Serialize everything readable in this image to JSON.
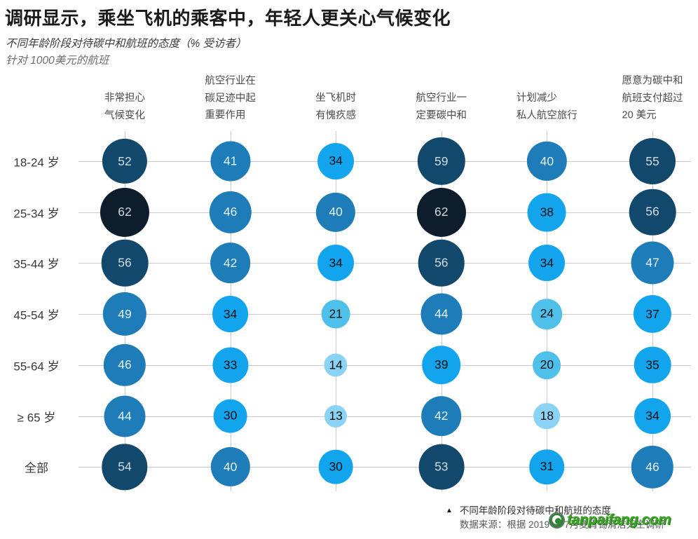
{
  "header": {
    "title": "调研显示，乘坐飞机的乘客中，年轻人更关心气候变化",
    "subtitle": "不同年龄阶段对待碳中和航班的态度（% 受访者）",
    "note": "针对 1000美元的航班"
  },
  "chart_data": {
    "type": "bubble-matrix",
    "title": "不同年龄阶段对待碳中和航班的态度",
    "unit": "% 受访者",
    "column_headers": [
      [
        "非常担心",
        "气候变化"
      ],
      [
        "航空行业在",
        "碳足迹中起",
        "重要作用"
      ],
      [
        "坐飞机时",
        "有愧疚感"
      ],
      [
        "航空行业一",
        "定要碳中和"
      ],
      [
        "计划减少",
        "私人航空旅行"
      ],
      [
        "愿意为碳中和",
        "航班支付超过",
        "20 美元"
      ]
    ],
    "row_labels": [
      "18-24 岁",
      "25-34 岁",
      "35-44 岁",
      "45-54 岁",
      "55-64 岁",
      "≥ 65 岁",
      "全部"
    ],
    "values": [
      [
        52,
        41,
        34,
        59,
        40,
        55
      ],
      [
        62,
        46,
        40,
        62,
        38,
        56
      ],
      [
        56,
        42,
        34,
        56,
        34,
        47
      ],
      [
        49,
        34,
        21,
        44,
        24,
        37
      ],
      [
        46,
        33,
        14,
        39,
        20,
        35
      ],
      [
        44,
        30,
        13,
        42,
        18,
        34
      ],
      [
        54,
        40,
        30,
        53,
        31,
        46
      ]
    ],
    "size_encoding": "diameter proportional to sqrt(value)",
    "color_bins": [
      {
        "min": 60,
        "fill": "#0d1d2b",
        "text": "#cdd8df"
      },
      {
        "min": 50,
        "fill": "#11486c",
        "text": "#d3dde3"
      },
      {
        "min": 40,
        "fill": "#1e7db8",
        "text": "#e9f0f4"
      },
      {
        "min": 25,
        "fill": "#12a5ee",
        "text": "#0c0f12"
      },
      {
        "min": 20,
        "fill": "#4fc0ea",
        "text": "#0c0f12"
      },
      {
        "min": 0,
        "fill": "#8bd3f5",
        "text": "#0c0f12"
      }
    ]
  },
  "footer": {
    "marker": "▲",
    "caption": "不同年龄阶段对待碳中和航班的态度",
    "source": "数据来源：根据 2019 年 7月麦肯锡清洁天空调研"
  },
  "watermark": {
    "text": "tanpaifang.com",
    "color": "#3da327"
  }
}
